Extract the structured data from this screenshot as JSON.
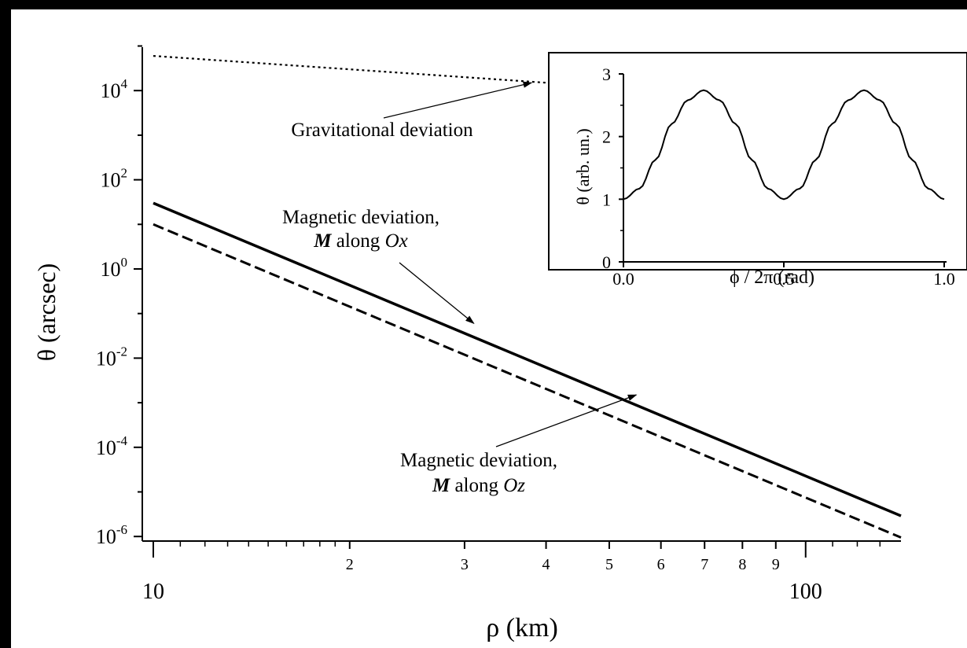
{
  "chart_data": [
    {
      "type": "line",
      "xscale": "log",
      "yscale": "log",
      "xlim": [
        10,
        140
      ],
      "ylim_exponent": [
        -6,
        5
      ],
      "xlabel": "ρ (km)",
      "ylabel": "θ (arcsec)",
      "x_major_ticks": [
        {
          "value": 10,
          "label": "10"
        },
        {
          "value": 100,
          "label": "100"
        }
      ],
      "x_minor_labeled_ticks": [
        {
          "value": 20,
          "label": "2"
        },
        {
          "value": 30,
          "label": "3"
        },
        {
          "value": 40,
          "label": "4"
        },
        {
          "value": 50,
          "label": "5"
        },
        {
          "value": 60,
          "label": "6"
        },
        {
          "value": 70,
          "label": "7"
        },
        {
          "value": 80,
          "label": "8"
        },
        {
          "value": 90,
          "label": "9"
        }
      ],
      "y_ticks": [
        {
          "exp": -6,
          "base": "10",
          "sup": "-6"
        },
        {
          "exp": -4,
          "base": "10",
          "sup": "-4"
        },
        {
          "exp": -2,
          "base": "10",
          "sup": "-2"
        },
        {
          "exp": 0,
          "base": "10",
          "sup": "0"
        },
        {
          "exp": 2,
          "base": "10",
          "sup": "2"
        },
        {
          "exp": 4,
          "base": "10",
          "sup": "4"
        }
      ],
      "series": [
        {
          "style": "dotted",
          "x": [
            10,
            140
          ],
          "y": [
            60000,
            4300
          ]
        },
        {
          "style": "solid",
          "x": [
            10,
            140
          ],
          "y": [
            30,
            2.9e-06
          ]
        },
        {
          "style": "dashed",
          "x": [
            10,
            140
          ],
          "y": [
            10,
            9.5e-07
          ]
        }
      ],
      "annotations": [
        {
          "lines": [
            "Gravitational deviation"
          ],
          "arrow_to": {
            "x": 38,
            "y": 15000
          }
        },
        {
          "lines": [
            "Magnetic deviation,",
            "M along Ox"
          ],
          "arrow_to": {
            "x": 31,
            "y": 0.06
          }
        },
        {
          "lines": [
            "Magnetic deviation,",
            "M along Oz"
          ],
          "arrow_to": {
            "x": 55,
            "y": 0.0015
          }
        }
      ]
    },
    {
      "type": "line",
      "xlim": [
        0,
        1
      ],
      "ylim": [
        0,
        3
      ],
      "xlabel": "ϕ / 2π (rad)",
      "ylabel": "θ (arb. un.)",
      "x_ticks": [
        {
          "value": 0,
          "label": "0.0"
        },
        {
          "value": 0.5,
          "label": "0.5"
        },
        {
          "value": 1,
          "label": "1.0"
        }
      ],
      "y_ticks": [
        {
          "value": 0,
          "label": "0"
        },
        {
          "value": 1,
          "label": "1"
        },
        {
          "value": 2,
          "label": "2"
        },
        {
          "value": 3,
          "label": "3"
        }
      ],
      "series": [
        {
          "style": "solid",
          "x": [
            0,
            0.05,
            0.1,
            0.15,
            0.2,
            0.25,
            0.3,
            0.35,
            0.4,
            0.45,
            0.5,
            0.55,
            0.6,
            0.65,
            0.7,
            0.75,
            0.8,
            0.85,
            0.9,
            0.95,
            1.0
          ],
          "y": [
            1.0,
            1.17,
            1.63,
            2.2,
            2.58,
            2.74,
            2.58,
            2.2,
            1.63,
            1.17,
            1.0,
            1.17,
            1.63,
            2.2,
            2.58,
            2.74,
            2.58,
            2.2,
            1.63,
            1.17,
            1.0
          ]
        }
      ]
    }
  ]
}
